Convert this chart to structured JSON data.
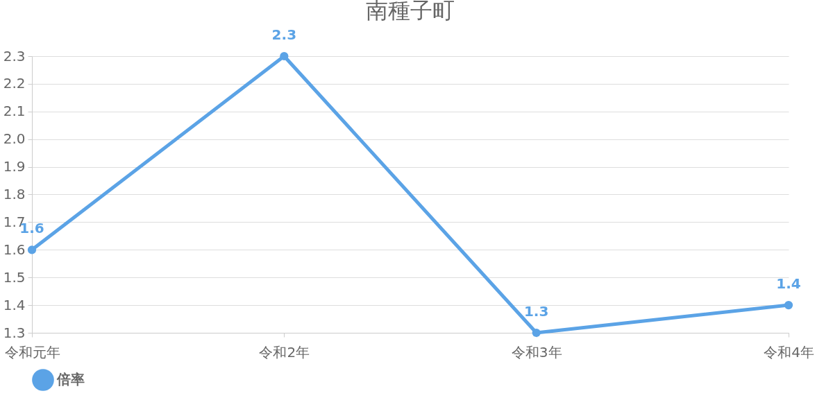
{
  "chart_data": {
    "type": "line",
    "title": "南種子町",
    "categories": [
      "令和元年",
      "令和2年",
      "令和3年",
      "令和4年"
    ],
    "series": [
      {
        "name": "倍率",
        "color": "#5ba3e6",
        "values": [
          1.6,
          2.3,
          1.3,
          1.4
        ]
      }
    ],
    "ylim": [
      1.3,
      2.3
    ],
    "yticks": [
      1.3,
      1.4,
      1.5,
      1.6,
      1.7,
      1.8,
      1.9,
      {
        "value": 2,
        "label": "2.0"
      },
      2.1,
      2.2,
      2.3
    ],
    "grid": "y",
    "legend": "bottom",
    "data_labels": true,
    "marker": "circle",
    "line_style": "solid"
  }
}
